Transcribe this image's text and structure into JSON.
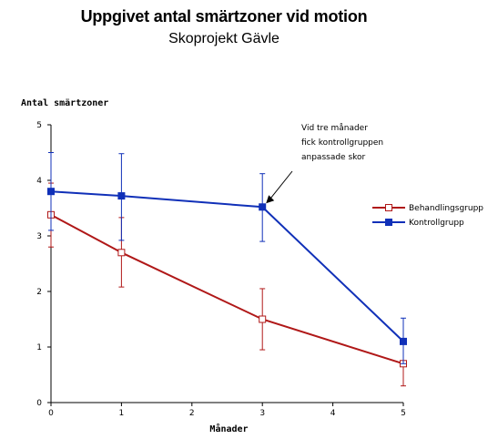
{
  "chart_data": {
    "type": "line",
    "title": "Uppgivet antal smärtzoner vid motion",
    "subtitle": "Skoprojekt Gävle",
    "xlabel": "Månader",
    "ylabel": "Antal smärtzoner",
    "xlim": [
      0,
      5
    ],
    "ylim": [
      0,
      5
    ],
    "x_ticks": [
      0,
      1,
      2,
      3,
      4,
      5
    ],
    "y_ticks": [
      0,
      1,
      2,
      3,
      4,
      5
    ],
    "grid": false,
    "legend_position": "right",
    "series": [
      {
        "name": "Behandlingsgrupp",
        "color": "#b01818",
        "marker": "open-square",
        "x": [
          0,
          1,
          3,
          5
        ],
        "y": [
          3.38,
          2.7,
          1.5,
          0.7
        ],
        "error_low": [
          2.8,
          2.08,
          0.95,
          0.3
        ],
        "error_high": [
          3.95,
          3.33,
          2.05,
          0.72
        ]
      },
      {
        "name": "Kontrollgrupp",
        "color": "#1030b8",
        "marker": "filled-square",
        "x": [
          0,
          1,
          3,
          5
        ],
        "y": [
          3.8,
          3.72,
          3.52,
          1.1
        ],
        "error_low": [
          3.1,
          2.92,
          2.9,
          0.7
        ],
        "error_high": [
          4.5,
          4.48,
          4.12,
          1.52
        ]
      }
    ],
    "annotation": {
      "lines": [
        "Vid tre månader",
        "fick kontrollgruppen",
        "anpassade skor"
      ],
      "points_to": {
        "x": 3,
        "y": 3.52
      }
    }
  }
}
